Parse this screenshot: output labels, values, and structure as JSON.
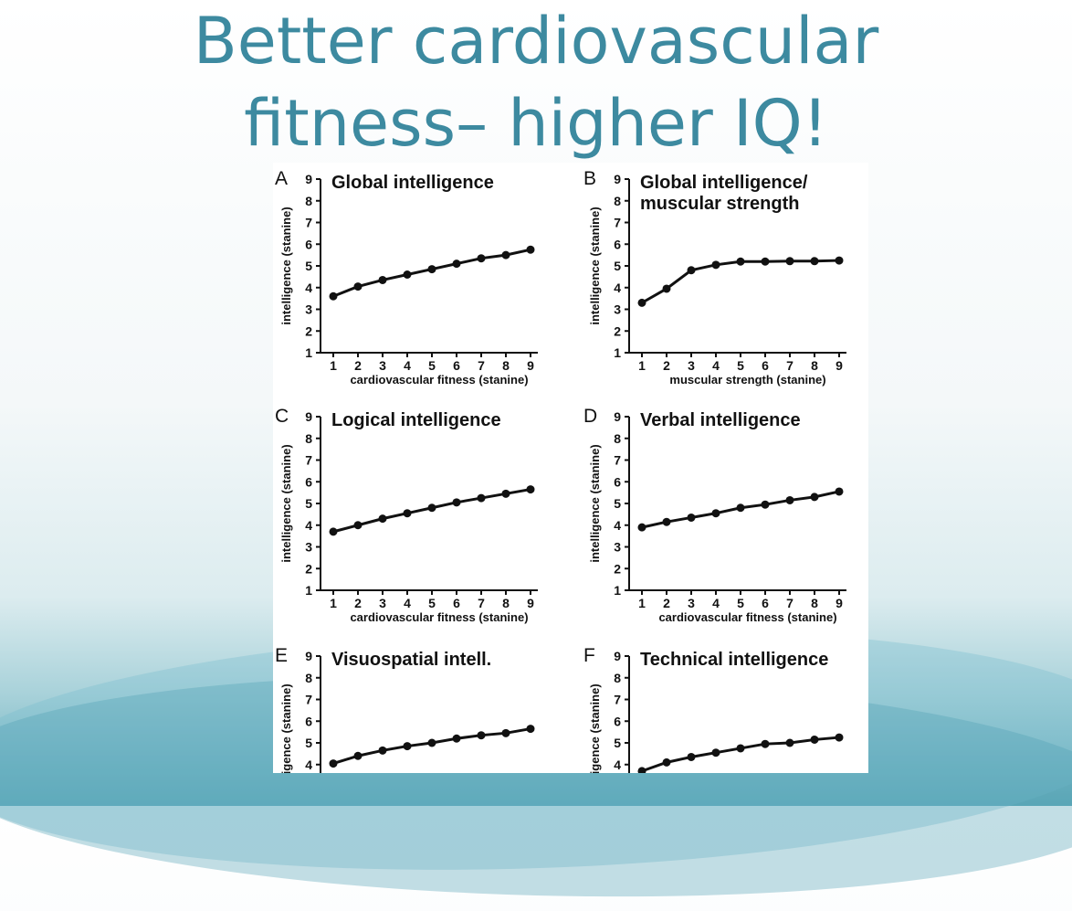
{
  "slide": {
    "title_line1": "Better cardiovascular",
    "title_line2": "fitness– higher IQ!",
    "colors": {
      "title": "#3d8aa0",
      "line": "#111111",
      "background_accent": "#5fa9b8"
    }
  },
  "chart_data": [
    {
      "type": "line",
      "panel": "A",
      "title": "Global intelligence",
      "xlabel": "cardiovascular fitness (stanine)",
      "ylabel": "intelligence (stanine)",
      "x": [
        1,
        2,
        3,
        4,
        5,
        6,
        7,
        8,
        9
      ],
      "values": [
        3.6,
        4.05,
        4.35,
        4.6,
        4.85,
        5.1,
        5.35,
        5.5,
        5.75
      ],
      "xlim": [
        1,
        9
      ],
      "ylim": [
        1,
        9
      ]
    },
    {
      "type": "line",
      "panel": "B",
      "title": "Global intelligence/\nmuscular strength",
      "xlabel": "muscular strength (stanine)",
      "ylabel": "intelligence (stanine)",
      "x": [
        1,
        2,
        3,
        4,
        5,
        6,
        7,
        8,
        9
      ],
      "values": [
        3.3,
        3.95,
        4.8,
        5.05,
        5.2,
        5.2,
        5.22,
        5.22,
        5.25
      ],
      "xlim": [
        1,
        9
      ],
      "ylim": [
        1,
        9
      ]
    },
    {
      "type": "line",
      "panel": "C",
      "title": "Logical intelligence",
      "xlabel": "cardiovascular fitness (stanine)",
      "ylabel": "intelligence (stanine)",
      "x": [
        1,
        2,
        3,
        4,
        5,
        6,
        7,
        8,
        9
      ],
      "values": [
        3.7,
        4.0,
        4.3,
        4.55,
        4.8,
        5.05,
        5.25,
        5.45,
        5.65
      ],
      "xlim": [
        1,
        9
      ],
      "ylim": [
        1,
        9
      ]
    },
    {
      "type": "line",
      "panel": "D",
      "title": "Verbal intelligence",
      "xlabel": "cardiovascular fitness (stanine)",
      "ylabel": "intelligence (stanine)",
      "x": [
        1,
        2,
        3,
        4,
        5,
        6,
        7,
        8,
        9
      ],
      "values": [
        3.9,
        4.15,
        4.35,
        4.55,
        4.8,
        4.95,
        5.15,
        5.3,
        5.55
      ],
      "xlim": [
        1,
        9
      ],
      "ylim": [
        1,
        9
      ]
    },
    {
      "type": "line",
      "panel": "E",
      "title": "Visuospatial intell.",
      "xlabel": "",
      "ylabel": "intelligence (stanine)",
      "x": [
        1,
        2,
        3,
        4,
        5,
        6,
        7,
        8,
        9
      ],
      "values": [
        4.05,
        4.4,
        4.65,
        4.85,
        5.0,
        5.2,
        5.35,
        5.45,
        5.65
      ],
      "xlim": [
        1,
        9
      ],
      "ylim": [
        1,
        9
      ]
    },
    {
      "type": "line",
      "panel": "F",
      "title": "Technical intelligence",
      "xlabel": "",
      "ylabel": "intelligence (stanine)",
      "x": [
        1,
        2,
        3,
        4,
        5,
        6,
        7,
        8,
        9
      ],
      "values": [
        3.7,
        4.1,
        4.35,
        4.55,
        4.75,
        4.95,
        5.0,
        5.15,
        5.25
      ],
      "xlim": [
        1,
        9
      ],
      "ylim": [
        1,
        9
      ]
    }
  ]
}
